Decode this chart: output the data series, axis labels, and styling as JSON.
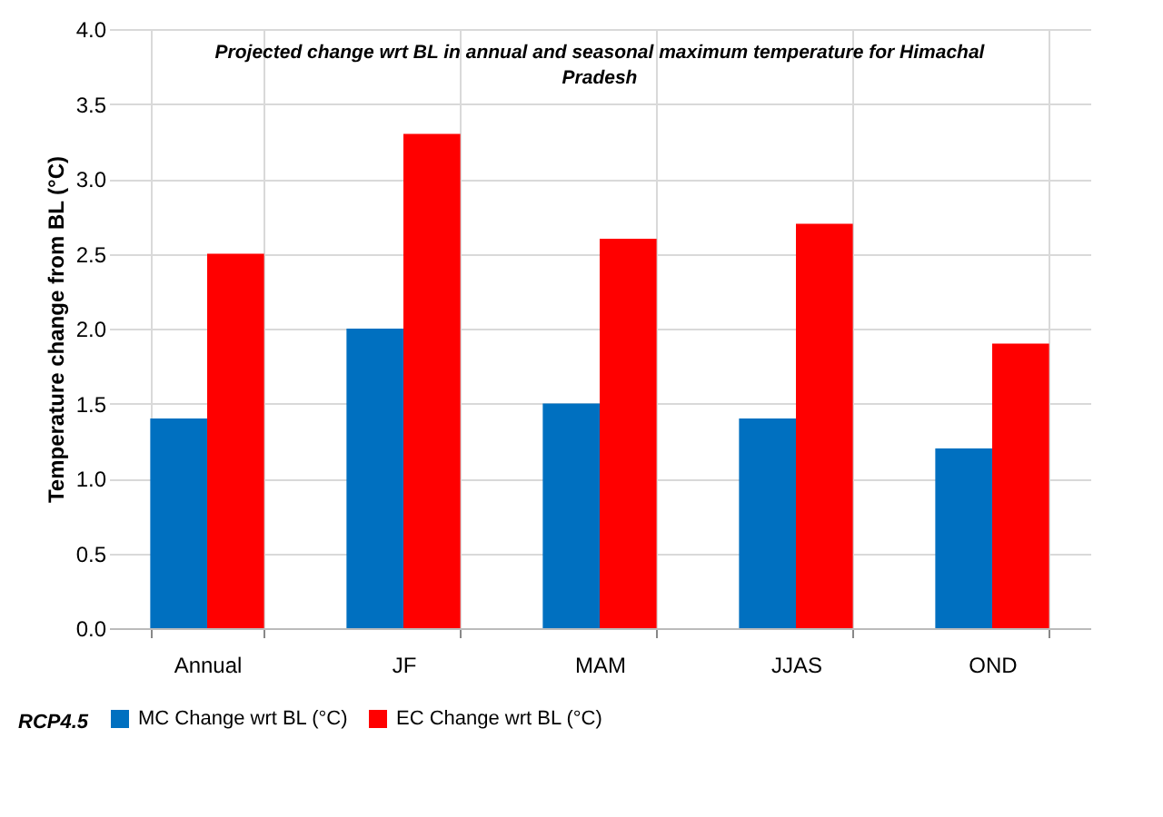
{
  "chart_data": {
    "type": "bar",
    "title": "Projected change wrt BL in annual  and seasonal maximum temperature for Himachal Pradesh",
    "ylabel": "Temperature change from BL (°C)",
    "categories": [
      "Annual",
      "JF",
      "MAM",
      "JJAS",
      "OND"
    ],
    "series": [
      {
        "name": "MC Change wrt BL (°C)",
        "color": "#0070c0",
        "values": [
          1.4,
          2.0,
          1.5,
          1.4,
          1.2
        ]
      },
      {
        "name": "EC Change wrt BL (°C)",
        "color": "#ff0000",
        "values": [
          2.5,
          3.3,
          2.6,
          2.7,
          1.9
        ]
      }
    ],
    "ylim": [
      0,
      4
    ],
    "yticks": [
      {
        "value": 0,
        "label": "0.0"
      },
      0.5,
      {
        "value": 1,
        "label": "1.0"
      },
      1.5,
      {
        "value": 2,
        "label": "2.0"
      },
      2.5,
      {
        "value": 3,
        "label": "3.0"
      },
      3.5,
      {
        "value": 4,
        "label": "4.0"
      }
    ],
    "grid": true,
    "legend": "bottom",
    "annotations": [
      "RCP4.5"
    ]
  }
}
